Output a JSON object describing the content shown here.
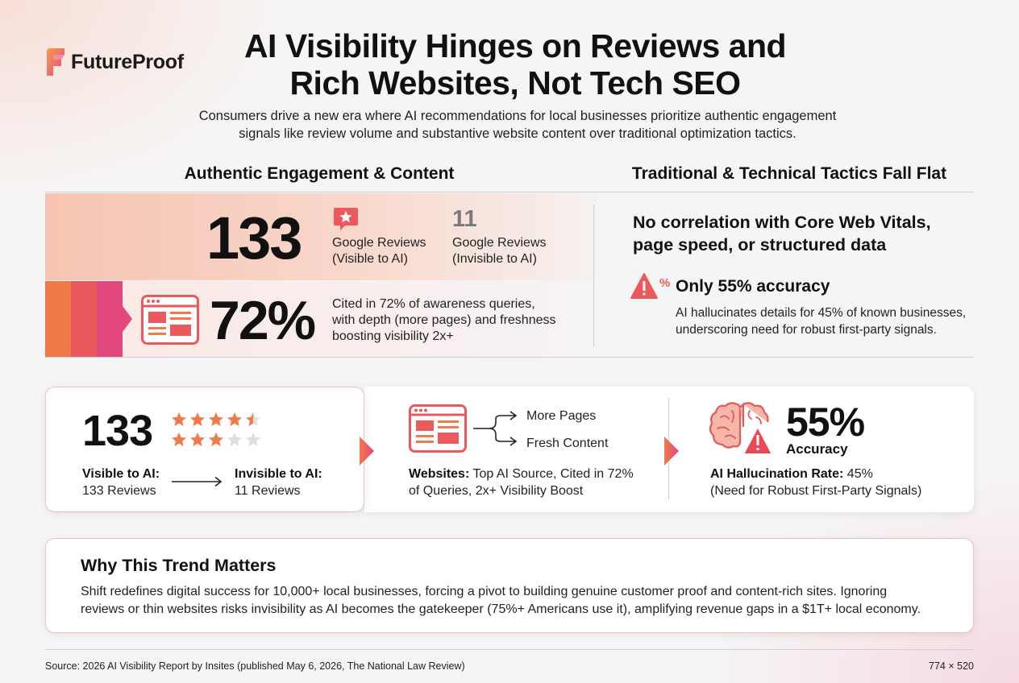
{
  "brand": {
    "name": "FutureProof"
  },
  "title_line1": "AI Visibility Hinges on Reviews and",
  "title_line2": "Rich Websites, Not Tech SEO",
  "subtitle_line1": "Consumers drive a new era where AI recommendations for local businesses prioritize authentic engagement",
  "subtitle_line2": "signals like review volume and substantive website content over traditional optimization tactics.",
  "left_section": {
    "heading": "Authentic Engagement & Content",
    "reviews_visible": {
      "value": "133",
      "label_line1": "Google Reviews",
      "label_line2": "(Visible to AI)"
    },
    "reviews_invisible": {
      "value": "11",
      "label_line1": "Google Reviews",
      "label_line2": "(Invisible to AI)"
    },
    "website_stat": {
      "value": "72%",
      "line1": "Cited in 72% of awareness queries,",
      "line2": "with depth (more pages) and freshness",
      "line3": "boosting visibility 2x+"
    }
  },
  "right_section": {
    "heading": "Traditional & Technical Tactics Fall Flat",
    "claim_line1": "No correlation with Core Web Vitals,",
    "claim_line2": "page speed, or structured data",
    "accuracy_heading": "Only 55% accuracy",
    "accuracy_line1": "AI hallucinates details for 45% of known businesses,",
    "accuracy_line2": "underscoring need for robust first-party signals.",
    "accuracy_icon_symbol": "%"
  },
  "cards": {
    "reviews": {
      "number": "133",
      "visible_label": "Visible to AI:",
      "visible_value": "133 Reviews",
      "invisible_label": "Invisible to AI:",
      "invisible_value": "11 Reviews",
      "stars_row1": 4.5,
      "stars_row2": 3,
      "stars_total": 5
    },
    "websites": {
      "branch1": "More Pages",
      "branch2": "Fresh Content",
      "label_bold": "Websites:",
      "label_rest": " Top AI Source, Cited in 72%",
      "label_line2": "of Queries, 2x+ Visibility Boost"
    },
    "accuracy": {
      "number": "55%",
      "sub": "Accuracy",
      "label_bold": "AI Hallucination Rate:",
      "label_rest": " 45%",
      "label_line2": "(Need for Robust First-Party Signals)"
    }
  },
  "why": {
    "heading": "Why This Trend Matters",
    "line1": "Shift redefines digital success for 10,000+ local businesses, forcing a pivot to building genuine customer proof and content-rich sites. Ignoring",
    "line2": "reviews or thin websites risks invisibility as AI becomes the gatekeeper (75%+ Americans use it), amplifying revenue gaps in a $1T+ local economy."
  },
  "footer": {
    "source": "Source: 2026 AI Visibility Report by Insites (published May 6, 2026, The National Law Review)",
    "dims": "774 × 520"
  },
  "colors": {
    "accent_orange": "#f07a4a",
    "accent_red": "#ea5a5c",
    "accent_pink": "#e2487e",
    "star": "#f07a4a",
    "star_empty": "#dedede"
  },
  "icons": {
    "logo": "futureproof-logo",
    "review": "review-star-bubble-icon",
    "browser": "browser-window-icon",
    "warning": "warning-triangle-icon",
    "brain": "brain-icon",
    "chevron": "chevron-right-icon"
  }
}
